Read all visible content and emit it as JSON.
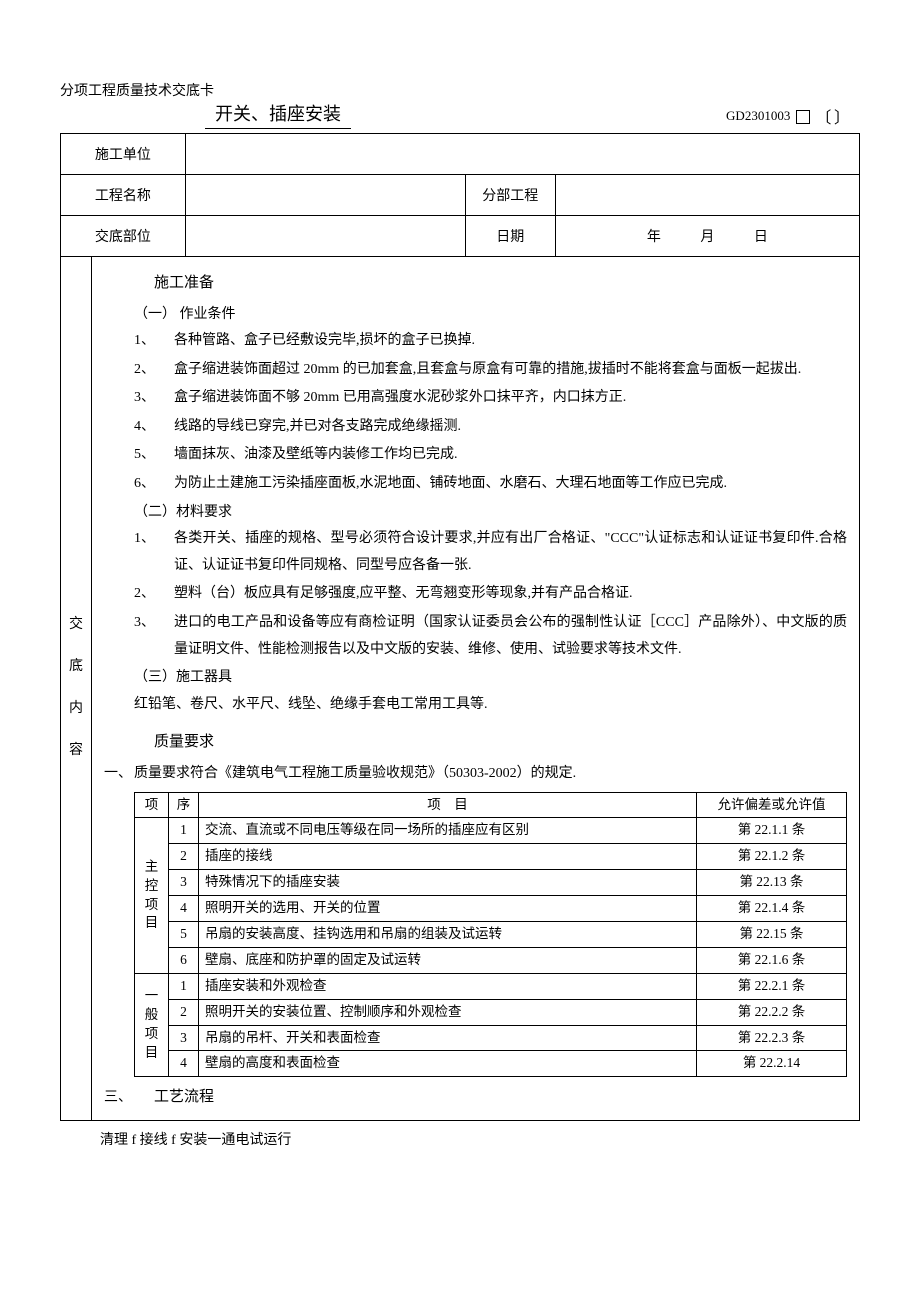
{
  "header": {
    "label": "分项工程质量技术交底卡",
    "title": "开关、插座安装",
    "code": "GD2301003"
  },
  "meta": {
    "row1_label": "施工单位",
    "row2_label": "工程名称",
    "row2_sub_label": "分部工程",
    "row3_label": "交底部位",
    "row3_date_label": "日期",
    "date_y": "年",
    "date_m": "月",
    "date_d": "日"
  },
  "left_column": "交底内容",
  "content": {
    "sec1_title": "施工准备",
    "sec1_sub1": "（一） 作业条件",
    "sec1_items": [
      "各种管路、盒子已经敷设完毕,损坏的盒子已换掉.",
      "盒子缩进装饰面超过 20mm 的已加套盒,且套盒与原盒有可靠的措施,拔插时不能将套盒与面板一起拔出.",
      "盒子缩进装饰面不够 20mm 已用高强度水泥砂浆外口抹平齐，内口抹方正.",
      "线路的导线已穿完,并已对各支路完成绝缘摇测.",
      "墙面抹灰、油漆及壁纸等内装修工作均已完成.",
      "为防止土建施工污染插座面板,水泥地面、铺砖地面、水磨石、大理石地面等工作应已完成."
    ],
    "sec1_sub2": "（二）材料要求",
    "sec1_mat_items": [
      "各类开关、插座的规格、型号必须符合设计要求,并应有出厂合格证、\"CCC\"认证标志和认证证书复印件.合格证、认证证书复印件同规格、同型号应各备一张.",
      "塑料（台）板应具有足够强度,应平整、无弯翘变形等现象,并有产品合格证.",
      "进口的电工产品和设备等应有商检证明（国家认证委员会公布的强制性认证［CCC］产品除外）、中文版的质量证明文件、性能检测报告以及中文版的安装、维修、使用、试验要求等技术文件."
    ],
    "sec1_sub3": "（三）施工器具",
    "sec1_tools": "红铅笔、卷尺、水平尺、线坠、绝缘手套电工常用工具等.",
    "sec2_title": "质量要求",
    "sec2_roman": "一、",
    "sec2_line": "质量要求符合《建筑电气工程施工质量验收规范》（50303-2002）的规定.",
    "table": {
      "h1": "项",
      "h2": "序",
      "h3": "项　目",
      "h4": "允许偏差或允许值",
      "cat1": "主控项目",
      "cat2": "一般项目",
      "rows1": [
        {
          "n": "1",
          "item": "交流、直流或不同电压等级在同一场所的插座应有区别",
          "a": "第 22.1.1 条"
        },
        {
          "n": "2",
          "item": "插座的接线",
          "a": "第 22.1.2 条"
        },
        {
          "n": "3",
          "item": "特殊情况下的插座安装",
          "a": "第 22.13 条"
        },
        {
          "n": "4",
          "item": "照明开关的选用、开关的位置",
          "a": "第 22.1.4 条"
        },
        {
          "n": "5",
          "item": "吊扇的安装高度、挂钩选用和吊扇的组装及试运转",
          "a": "第 22.15 条"
        },
        {
          "n": "6",
          "item": "壁扇、底座和防护罩的固定及试运转",
          "a": "第 22.1.6 条"
        }
      ],
      "rows2": [
        {
          "n": "1",
          "item": "插座安装和外观检查",
          "a": "第 22.2.1 条"
        },
        {
          "n": "2",
          "item": "照明开关的安装位置、控制顺序和外观检查",
          "a": "第 22.2.2 条"
        },
        {
          "n": "3",
          "item": "吊扇的吊杆、开关和表面检查",
          "a": "第 22.2.3 条"
        },
        {
          "n": "4",
          "item": "壁扇的高度和表面检查",
          "a": "第 22.2.14"
        }
      ]
    },
    "sec3_num": "三、",
    "sec3_title": "工艺流程"
  },
  "footer": "清理 f 接线 f 安装一通电试运行"
}
